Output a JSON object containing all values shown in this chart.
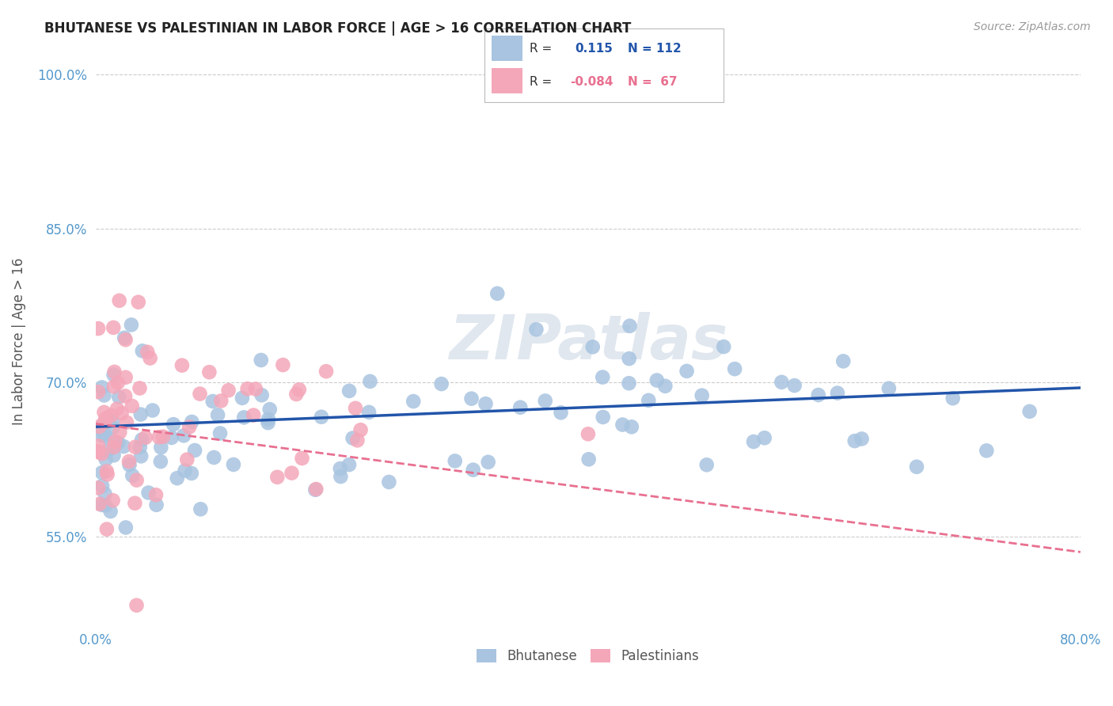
{
  "title": "BHUTANESE VS PALESTINIAN IN LABOR FORCE | AGE > 16 CORRELATION CHART",
  "source": "Source: ZipAtlas.com",
  "ylabel": "In Labor Force | Age > 16",
  "x_min": 0.0,
  "x_max": 0.8,
  "y_min": 0.46,
  "y_max": 1.02,
  "y_ticks": [
    0.55,
    0.7,
    0.85,
    1.0
  ],
  "y_tick_labels": [
    "55.0%",
    "70.0%",
    "85.0%",
    "100.0%"
  ],
  "watermark": "ZIPatlas",
  "blue_R": 0.115,
  "blue_N": 112,
  "pink_R": -0.084,
  "pink_N": 67,
  "blue_color": "#a8c4e0",
  "pink_color": "#f4a7b9",
  "blue_line_color": "#2255aa",
  "pink_line_color": "#e87090",
  "tick_color": "#5599cc",
  "grid_color": "#cccccc",
  "background_color": "#ffffff",
  "blue_line_x": [
    0.0,
    0.8
  ],
  "blue_line_y": [
    0.657,
    0.695
  ],
  "pink_line_x": [
    0.0,
    0.8
  ],
  "pink_line_y": [
    0.66,
    0.535
  ]
}
